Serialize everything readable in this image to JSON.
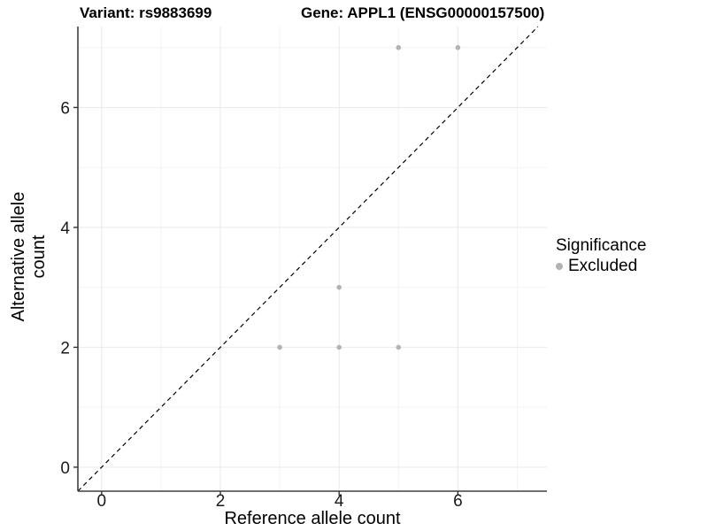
{
  "header": {
    "variant_title": "Variant: rs9883699",
    "gene_title": "Gene: APPL1 (ENSG00000157500)"
  },
  "legend": {
    "title": "Significance",
    "items": [
      {
        "label": "Excluded",
        "color": "#b3b3b3"
      }
    ]
  },
  "chart_data": {
    "type": "scatter",
    "title": "Variant: rs9883699 | Gene: APPL1 (ENSG00000157500)",
    "xlabel": "Reference allele count",
    "ylabel": "Alternative allele count",
    "xlim": [
      -0.4,
      7.5
    ],
    "ylim": [
      -0.4,
      7.35
    ],
    "x_ticks": [
      0,
      2,
      4,
      6
    ],
    "y_ticks": [
      0,
      2,
      4,
      6
    ],
    "minor_breaks": [
      1,
      3,
      5,
      7
    ],
    "grid": true,
    "legend_position": "right",
    "series": [
      {
        "name": "Excluded",
        "color": "#b3b3b3",
        "points": [
          [
            3,
            2
          ],
          [
            4,
            2
          ],
          [
            5,
            2
          ],
          [
            4,
            3
          ],
          [
            5,
            7
          ],
          [
            6,
            7
          ]
        ]
      }
    ],
    "reference_line": {
      "kind": "abline",
      "slope": 1,
      "intercept": 0,
      "style": "dashed",
      "color": "#000000"
    },
    "style": {
      "panel_bg": "#ffffff",
      "grid_major": "#e9e9e9",
      "grid_minor": "#f4f4f4",
      "axis_line": "#404040",
      "tick_color": "#333333",
      "tick_label_color": "#1a1a1a",
      "point_radius": 2.8
    }
  }
}
